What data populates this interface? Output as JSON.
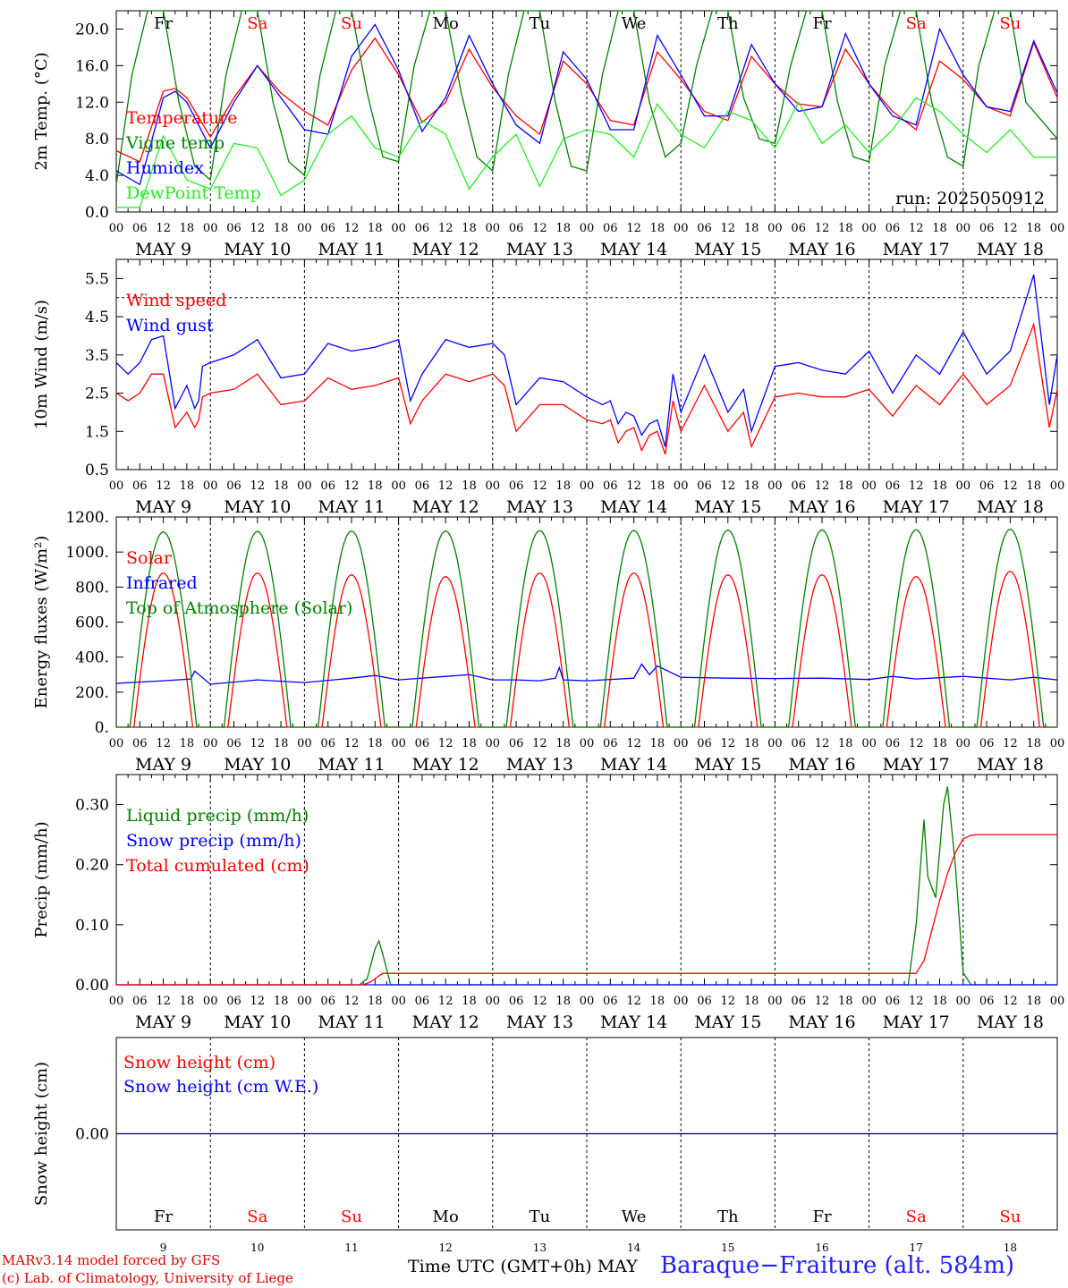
{
  "colors": {
    "red": "#ff0000",
    "green": "#008000",
    "lightgreen": "#22ee22",
    "blue": "#0000ff"
  },
  "days_top": [
    {
      "label": "Fr",
      "color": "#000000"
    },
    {
      "label": "Sa",
      "color": "#ff0000"
    },
    {
      "label": "Su",
      "color": "#ff0000"
    },
    {
      "label": "Mo",
      "color": "#000000"
    },
    {
      "label": "Tu",
      "color": "#000000"
    },
    {
      "label": "We",
      "color": "#000000"
    },
    {
      "label": "Th",
      "color": "#000000"
    },
    {
      "label": "Fr",
      "color": "#000000"
    },
    {
      "label": "Sa",
      "color": "#ff0000"
    },
    {
      "label": "Su",
      "color": "#ff0000"
    }
  ],
  "day_numbers": [
    "9",
    "10",
    "11",
    "12",
    "13",
    "14",
    "15",
    "16",
    "17",
    "18"
  ],
  "date_labels": [
    "MAY  9",
    "MAY 10",
    "MAY 11",
    "MAY 12",
    "MAY 13",
    "MAY 14",
    "MAY 15",
    "MAY 16",
    "MAY 17",
    "MAY 18"
  ],
  "hour_labels": [
    "00",
    "06",
    "12",
    "18"
  ],
  "hour_label_end": "00",
  "run_label": "run: 2025050912",
  "footer": {
    "credit_line1": "MARv3.14 model forced by GFS",
    "credit_line2": "(c) Lab. of Climatology, University of Liege",
    "x_axis_title": "Time UTC (GMT+0h) MAY",
    "station": "Baraque−Fraiture (alt. 584m)"
  },
  "chart_data": [
    {
      "type": "line",
      "ylabel": "2m Temp. (°C)",
      "ylim": [
        0,
        22
      ],
      "yticks": [
        0,
        4,
        8,
        12,
        16,
        20
      ],
      "ytick_labels": [
        "0.0",
        "4.0",
        "8.0",
        "12.0",
        "16.0",
        "20.0"
      ],
      "x_unit": "hours since MAY 9 00 UTC",
      "xlim": [
        0,
        240
      ],
      "series": [
        {
          "name": "Temperature",
          "color": "#ff0000",
          "x": [
            0,
            6,
            12,
            15,
            18,
            24,
            30,
            36,
            42,
            48,
            54,
            60,
            66,
            72,
            78,
            84,
            90,
            96,
            102,
            108,
            114,
            120,
            126,
            132,
            138,
            144,
            150,
            156,
            162,
            168,
            174,
            180,
            186,
            192,
            198,
            204,
            210,
            216,
            222,
            228,
            234,
            240
          ],
          "values": [
            6.7,
            5.5,
            13.2,
            13.5,
            12.5,
            8.2,
            12.5,
            16.0,
            13.0,
            11.0,
            9.5,
            15.5,
            19.0,
            15.0,
            9.8,
            12.0,
            17.8,
            13.6,
            10.5,
            8.5,
            16.5,
            14.0,
            10.0,
            9.5,
            17.5,
            14.5,
            11.0,
            10.0,
            17.0,
            14.0,
            11.8,
            11.5,
            17.8,
            14.0,
            11.0,
            9.0,
            16.5,
            14.5,
            11.5,
            10.5,
            18.5,
            12.5
          ]
        },
        {
          "name": "Vigne temp",
          "color": "#008000",
          "x": [
            0,
            4,
            8,
            12,
            16,
            20,
            24,
            28,
            32,
            36,
            40,
            44,
            48,
            52,
            56,
            60,
            64,
            68,
            72,
            76,
            80,
            84,
            88,
            92,
            96,
            100,
            104,
            108,
            112,
            116,
            120,
            124,
            128,
            132,
            136,
            140,
            144,
            148,
            152,
            156,
            160,
            164,
            168,
            172,
            176,
            180,
            184,
            188,
            192,
            196,
            200,
            204,
            208,
            212,
            216,
            220,
            224,
            228,
            232,
            236,
            240
          ],
          "values": [
            3.0,
            15.0,
            23.0,
            23.0,
            12.0,
            5.0,
            3.5,
            15.0,
            23.0,
            23.0,
            12.0,
            5.5,
            4.0,
            15.0,
            23.0,
            23.0,
            13.0,
            6.0,
            5.5,
            16.0,
            23.0,
            23.0,
            13.0,
            6.0,
            4.5,
            15.0,
            23.0,
            23.0,
            12.0,
            5.0,
            4.5,
            15.0,
            23.0,
            23.0,
            12.0,
            6.0,
            7.5,
            16.0,
            23.0,
            23.0,
            12.5,
            8.0,
            7.5,
            16.0,
            23.0,
            23.0,
            12.0,
            6.0,
            5.5,
            16.0,
            23.0,
            23.0,
            12.0,
            6.0,
            5.0,
            16.0,
            23.0,
            23.0,
            12.0,
            10.0,
            8.0
          ]
        },
        {
          "name": "Humidex",
          "color": "#0000ff",
          "x": [
            0,
            6,
            12,
            15,
            18,
            24,
            30,
            36,
            42,
            48,
            54,
            60,
            66,
            72,
            78,
            84,
            90,
            96,
            102,
            108,
            114,
            120,
            126,
            132,
            138,
            144,
            150,
            156,
            162,
            168,
            174,
            180,
            186,
            192,
            198,
            204,
            210,
            216,
            222,
            228,
            234,
            240
          ],
          "values": [
            4.5,
            3.0,
            12.5,
            13.2,
            12.0,
            7.0,
            12.0,
            16.0,
            12.5,
            9.0,
            8.5,
            17.0,
            20.5,
            15.5,
            8.8,
            12.5,
            19.3,
            14.0,
            9.5,
            7.5,
            17.5,
            14.5,
            9.0,
            9.0,
            19.3,
            15.0,
            10.5,
            10.5,
            18.3,
            14.0,
            11.0,
            11.5,
            19.5,
            14.0,
            10.5,
            9.5,
            20.0,
            15.0,
            11.5,
            11.0,
            18.7,
            13.0
          ]
        },
        {
          "name": "DewPoint Temp",
          "color": "#22ee22",
          "x": [
            0,
            6,
            12,
            18,
            24,
            30,
            36,
            42,
            48,
            54,
            60,
            66,
            72,
            78,
            84,
            90,
            96,
            102,
            108,
            114,
            120,
            126,
            132,
            138,
            144,
            150,
            156,
            162,
            168,
            174,
            180,
            186,
            192,
            198,
            204,
            210,
            216,
            222,
            228,
            234,
            240
          ],
          "values": [
            0.5,
            0.5,
            8.3,
            3.5,
            2.5,
            7.5,
            7.0,
            1.8,
            3.5,
            8.5,
            10.5,
            7.0,
            6.0,
            10.0,
            8.5,
            2.5,
            6.0,
            8.5,
            2.8,
            8.0,
            9.0,
            8.5,
            6.0,
            11.8,
            8.5,
            7.0,
            11.0,
            10.0,
            7.0,
            12.0,
            7.5,
            9.5,
            6.5,
            9.0,
            12.5,
            11.0,
            8.5,
            6.5,
            9.0,
            6.0,
            6.0
          ]
        }
      ]
    },
    {
      "type": "line",
      "ylabel": "10m Wind (m/s)",
      "ylim": [
        0.5,
        6.0
      ],
      "yticks": [
        0.5,
        1.5,
        2.5,
        3.5,
        4.5,
        5.5
      ],
      "ytick_labels": [
        "0.5",
        "1.5",
        "2.5",
        "3.5",
        "4.5",
        "5.5"
      ],
      "reference_line": 5.0,
      "x_unit": "hours since MAY 9 00 UTC",
      "xlim": [
        0,
        240
      ],
      "series": [
        {
          "name": "Wind speed",
          "color": "#ff0000",
          "x": [
            0,
            3,
            6,
            9,
            12,
            15,
            18,
            20,
            21,
            22,
            24,
            30,
            36,
            42,
            48,
            54,
            60,
            66,
            72,
            75,
            78,
            84,
            90,
            96,
            99,
            102,
            108,
            114,
            120,
            124,
            126,
            128,
            130,
            132,
            134,
            136,
            138,
            140,
            142,
            144,
            150,
            156,
            160,
            162,
            168,
            174,
            180,
            186,
            192,
            198,
            204,
            210,
            216,
            222,
            228,
            234,
            238,
            240
          ],
          "values": [
            2.5,
            2.3,
            2.5,
            3.0,
            3.0,
            1.6,
            2.0,
            1.6,
            1.8,
            2.4,
            2.5,
            2.6,
            3.0,
            2.2,
            2.3,
            2.9,
            2.6,
            2.7,
            2.9,
            1.7,
            2.3,
            3.0,
            2.8,
            3.0,
            2.7,
            1.5,
            2.2,
            2.2,
            1.8,
            1.7,
            1.8,
            1.2,
            1.5,
            1.6,
            1.0,
            1.4,
            1.5,
            0.9,
            2.3,
            1.5,
            2.7,
            1.5,
            2.0,
            1.1,
            2.4,
            2.5,
            2.4,
            2.4,
            2.6,
            1.9,
            2.7,
            2.2,
            3.0,
            2.2,
            2.7,
            4.3,
            1.6,
            2.6
          ]
        },
        {
          "name": "Wind gust",
          "color": "#0000ff",
          "x": [
            0,
            3,
            6,
            9,
            12,
            15,
            18,
            20,
            21,
            22,
            24,
            30,
            36,
            42,
            48,
            54,
            60,
            66,
            72,
            75,
            78,
            84,
            90,
            96,
            99,
            102,
            108,
            114,
            120,
            124,
            126,
            128,
            130,
            132,
            134,
            136,
            138,
            140,
            142,
            144,
            150,
            156,
            160,
            162,
            168,
            174,
            180,
            186,
            192,
            198,
            204,
            210,
            216,
            222,
            228,
            234,
            238,
            240
          ],
          "values": [
            3.3,
            3.0,
            3.3,
            3.9,
            4.0,
            2.1,
            2.7,
            2.1,
            2.3,
            3.2,
            3.3,
            3.5,
            3.9,
            2.9,
            3.0,
            3.8,
            3.6,
            3.7,
            3.9,
            2.3,
            3.0,
            3.9,
            3.7,
            3.8,
            3.5,
            2.2,
            2.9,
            2.8,
            2.4,
            2.2,
            2.3,
            1.7,
            2.0,
            1.9,
            1.4,
            1.7,
            1.8,
            1.1,
            3.0,
            2.0,
            3.5,
            2.0,
            2.6,
            1.5,
            3.2,
            3.3,
            3.1,
            3.0,
            3.6,
            2.5,
            3.5,
            3.0,
            4.1,
            3.0,
            3.6,
            5.6,
            2.2,
            3.5
          ]
        }
      ]
    },
    {
      "type": "line",
      "ylabel": "Energy fluxes (W/m²)",
      "ylim": [
        0,
        1200
      ],
      "yticks": [
        0,
        200,
        400,
        600,
        800,
        1000,
        1200
      ],
      "ytick_labels": [
        "0.",
        "200.",
        "400.",
        "600.",
        "800.",
        "1000.",
        "1200."
      ],
      "x_unit": "hours since MAY 9 00 UTC",
      "xlim": [
        0,
        240
      ],
      "series": [
        {
          "name": "Solar",
          "color": "#ff0000",
          "daily_peaks": [
            880,
            880,
            870,
            860,
            880,
            880,
            870,
            870,
            860,
            890
          ],
          "sunrise_hour": 4.5,
          "sunset_hour": 19.5
        },
        {
          "name": "Infrared",
          "color": "#0000ff",
          "x": [
            0,
            12,
            19,
            20,
            24,
            36,
            48,
            60,
            66,
            72,
            84,
            90,
            96,
            102,
            108,
            112,
            113,
            114,
            120,
            132,
            134,
            136,
            138,
            144,
            156,
            168,
            180,
            192,
            198,
            204,
            216,
            228,
            234,
            240
          ],
          "values": [
            250,
            265,
            275,
            320,
            245,
            270,
            255,
            280,
            295,
            270,
            290,
            300,
            270,
            270,
            265,
            280,
            340,
            270,
            265,
            280,
            360,
            300,
            350,
            285,
            280,
            278,
            280,
            272,
            290,
            275,
            290,
            270,
            285,
            270
          ]
        },
        {
          "name": "Top of Atmosphere (Solar)",
          "color": "#008000",
          "daily_peaks": [
            1115,
            1118,
            1120,
            1120,
            1122,
            1123,
            1125,
            1126,
            1127,
            1130
          ],
          "sunrise_hour": 3.5,
          "sunset_hour": 20.5
        }
      ]
    },
    {
      "type": "line",
      "ylabel": "Precip (mm/h)",
      "ylim": [
        0,
        0.35
      ],
      "yticks": [
        0,
        0.1,
        0.2,
        0.3
      ],
      "ytick_labels": [
        "0.00",
        "0.10",
        "0.20",
        "0.30"
      ],
      "x_unit": "hours since MAY 9 00 UTC",
      "xlim": [
        0,
        240
      ],
      "series": [
        {
          "name": "Liquid precip (mm/h)",
          "color": "#008000",
          "x": [
            0,
            62,
            64,
            66,
            67,
            68,
            70,
            72,
            202,
            204,
            206,
            207,
            209,
            211,
            212,
            214,
            216,
            217,
            218,
            240
          ],
          "values": [
            0,
            0,
            0.01,
            0.06,
            0.073,
            0.05,
            0.0,
            0,
            0,
            0.1,
            0.275,
            0.18,
            0.145,
            0.3,
            0.33,
            0.2,
            0.02,
            0.01,
            0,
            0
          ]
        },
        {
          "name": "Snow precip (mm/h)",
          "color": "#0000ff",
          "x": [
            0,
            240
          ],
          "values": [
            0,
            0
          ]
        },
        {
          "name": "Total cumulated (cm)",
          "color": "#ff0000",
          "x": [
            0,
            63,
            65,
            67,
            68,
            204,
            206,
            208,
            210,
            212,
            214,
            216,
            218,
            220,
            240
          ],
          "values": [
            0,
            0,
            0.005,
            0.015,
            0.019,
            0.019,
            0.04,
            0.09,
            0.14,
            0.185,
            0.22,
            0.243,
            0.249,
            0.25,
            0.25
          ]
        }
      ]
    },
    {
      "type": "line",
      "ylabel": "Snow height (cm)",
      "ylim": [
        -1,
        1
      ],
      "yticks": [
        0
      ],
      "ytick_labels": [
        "0.00"
      ],
      "x_unit": "hours since MAY 9 00 UTC",
      "xlim": [
        0,
        240
      ],
      "series": [
        {
          "name": "Snow height (cm)",
          "color": "#ff0000",
          "x": [
            0,
            240
          ],
          "values": [
            0,
            0
          ]
        },
        {
          "name": "Snow height (cm W.E.)",
          "color": "#0000ff",
          "x": [
            0,
            240
          ],
          "values": [
            0,
            0
          ]
        }
      ]
    }
  ]
}
